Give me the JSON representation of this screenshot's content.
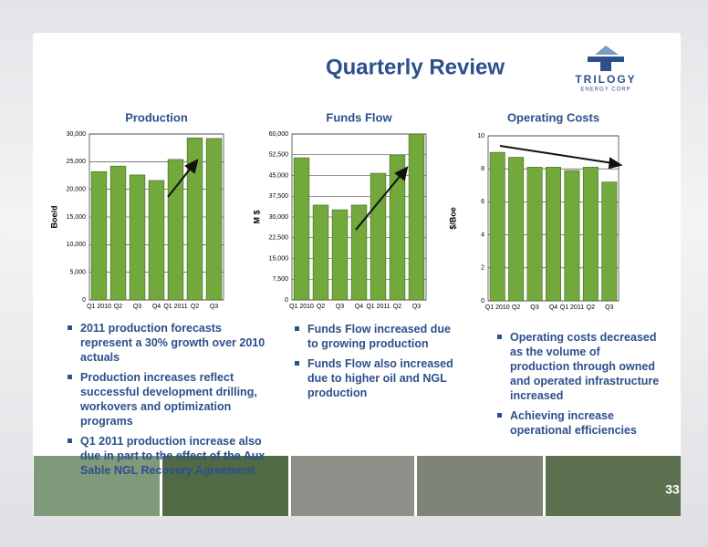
{
  "title": "Quarterly Review",
  "logo": {
    "name": "TRILOGY",
    "subtitle": "ENERGY CORP"
  },
  "page_number": "33",
  "chart_data": [
    {
      "type": "bar",
      "title": "Production",
      "y_label": "Boe/d",
      "categories": [
        "Q1 2010",
        "Q2",
        "Q3",
        "Q4",
        "Q1 2011",
        "Q2",
        "Q3"
      ],
      "values": [
        23200,
        24200,
        22600,
        21600,
        25400,
        29300,
        29200
      ],
      "color": "#72a83c",
      "ylim": [
        0,
        30000
      ],
      "yticks": [
        0,
        {
          "value": 5000,
          "label": "5,000"
        },
        {
          "value": 10000,
          "label": "10,000"
        },
        {
          "value": 15000,
          "label": "15,000"
        },
        {
          "value": 20000,
          "label": "20,000"
        },
        {
          "value": 25000,
          "label": "25,000"
        },
        {
          "value": 30000,
          "label": "30,000"
        }
      ],
      "grid": true
    },
    {
      "type": "bar",
      "title": "Funds Flow",
      "y_label": "M $",
      "categories": [
        "Q1 2010",
        "Q2",
        "Q3",
        "Q4",
        "Q1 2011",
        "Q2",
        "Q3"
      ],
      "values": [
        51400,
        34300,
        32600,
        34300,
        45800,
        52400,
        60000
      ],
      "color": "#72a83c",
      "ylim": [
        0,
        60000
      ],
      "yticks": [
        0,
        {
          "value": 7500,
          "label": "7,500"
        },
        {
          "value": 15000,
          "label": "15,000"
        },
        {
          "value": 22500,
          "label": "22,500"
        },
        {
          "value": 30000,
          "label": "30,000"
        },
        {
          "value": 37500,
          "label": "37,500"
        },
        {
          "value": 45000,
          "label": "45,000"
        },
        {
          "value": 52500,
          "label": "52,500"
        },
        {
          "value": 60000,
          "label": "60,000"
        }
      ],
      "grid": true
    },
    {
      "type": "bar",
      "title": "Operating Costs",
      "y_label": "$/Boe",
      "categories": [
        "Q1 2010",
        "Q2",
        "Q3",
        "Q4",
        "Q1 2011",
        "Q2",
        "Q3"
      ],
      "values": [
        9.0,
        8.7,
        8.1,
        8.1,
        7.9,
        8.1,
        7.2
      ],
      "color": "#72a83c",
      "ylim": [
        0,
        10
      ],
      "yticks": [
        0,
        2,
        4,
        6,
        8,
        10
      ],
      "grid": true
    }
  ],
  "bullets": [
    [
      "2011 production forecasts represent a 30% growth over 2010 actuals",
      "Production increases reflect successful development drilling, workovers and optimization programs",
      "Q1 2011 production increase also due in part to the effect of the Aux Sable NGL Recovery Agreement"
    ],
    [
      "Funds Flow increased due to growing production",
      "Funds Flow also increased due to  higher oil and NGL production"
    ],
    [
      "Operating costs decreased as the volume of production through owned and operated infrastructure increased",
      "Achieving increase operational efficiencies"
    ]
  ]
}
